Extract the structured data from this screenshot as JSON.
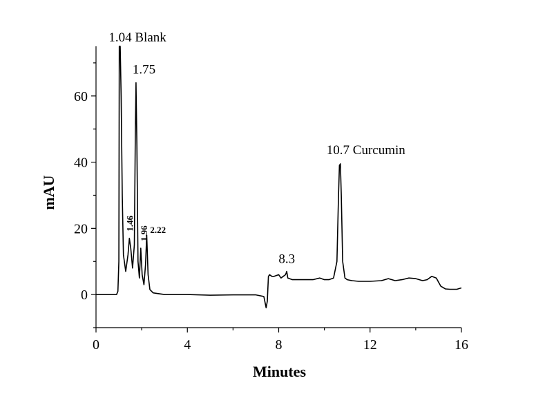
{
  "chart_data": {
    "type": "line",
    "title": "",
    "xlabel": "Minutes",
    "ylabel": "mAU",
    "xlim": [
      0,
      16
    ],
    "ylim": [
      -10,
      75
    ],
    "x_ticks": [
      0,
      4,
      8,
      12,
      16
    ],
    "y_ticks": [
      0,
      20,
      40,
      60
    ],
    "x_tick_labels": [
      "0",
      "4",
      "8",
      "12",
      "16"
    ],
    "y_tick_labels": [
      "0",
      "20",
      "40",
      "60"
    ],
    "grid": false,
    "legend": "none",
    "line_color": "#000000",
    "series": [
      {
        "x": [
          0.0,
          0.9,
          0.96,
          1.0,
          1.02,
          1.06,
          1.1,
          1.15,
          1.2,
          1.3,
          1.4,
          1.46,
          1.52,
          1.6,
          1.68,
          1.72,
          1.75,
          1.79,
          1.84,
          1.9,
          1.96,
          2.02,
          2.1,
          2.17,
          2.22,
          2.28,
          2.36,
          2.5,
          2.7,
          3.0,
          4.0,
          5.0,
          6.0,
          7.0,
          7.35,
          7.45,
          7.5,
          7.55,
          7.6,
          7.7,
          7.8,
          8.0,
          8.1,
          8.2,
          8.3,
          8.35,
          8.4,
          8.6,
          8.8,
          9.0,
          9.5,
          9.8,
          10.0,
          10.2,
          10.4,
          10.55,
          10.62,
          10.66,
          10.7,
          10.74,
          10.8,
          10.9,
          11.0,
          11.2,
          11.5,
          12.0,
          12.5,
          12.8,
          13.1,
          13.4,
          13.7,
          14.0,
          14.3,
          14.5,
          14.7,
          14.9,
          15.1,
          15.3,
          15.5,
          15.8,
          16.0
        ],
        "y": [
          0.0,
          0.0,
          1.0,
          10.0,
          75.0,
          75.0,
          60.0,
          30.0,
          12.0,
          7.0,
          12.0,
          17.0,
          14.0,
          8.0,
          15.0,
          48.0,
          64.0,
          45.0,
          10.0,
          5.0,
          14.0,
          6.0,
          3.0,
          9.0,
          18.0,
          6.0,
          1.5,
          0.5,
          0.3,
          0.0,
          0.0,
          -0.2,
          -0.1,
          -0.1,
          -0.6,
          -4.0,
          -2.0,
          5.5,
          6.0,
          5.5,
          5.5,
          6.0,
          5.0,
          5.5,
          6.0,
          7.0,
          5.0,
          4.5,
          4.5,
          4.5,
          4.5,
          5.0,
          4.5,
          4.5,
          5.0,
          10.0,
          30.0,
          39.0,
          39.5,
          30.0,
          10.0,
          5.0,
          4.5,
          4.2,
          4.0,
          4.0,
          4.2,
          4.8,
          4.2,
          4.5,
          5.0,
          4.8,
          4.2,
          4.5,
          5.5,
          5.0,
          2.5,
          1.7,
          1.6,
          1.6,
          2.0
        ]
      }
    ],
    "annotations": [
      {
        "text": "1.04 Blank",
        "x": 1.04,
        "y": 75.0,
        "style": "large"
      },
      {
        "text": "1.75",
        "x": 1.75,
        "y": 64.0,
        "style": "large"
      },
      {
        "text": "1.46",
        "x": 1.46,
        "y": 17.0,
        "style": "small-vertical"
      },
      {
        "text": "1.96",
        "x": 1.96,
        "y": 14.0,
        "style": "small-vertical"
      },
      {
        "text": "2.22",
        "x": 2.22,
        "y": 18.0,
        "style": "small"
      },
      {
        "text": "8.3",
        "x": 8.3,
        "y": 7.0,
        "style": "large"
      },
      {
        "text": "10.7 Curcumin",
        "x": 10.7,
        "y": 39.5,
        "style": "large"
      }
    ]
  }
}
